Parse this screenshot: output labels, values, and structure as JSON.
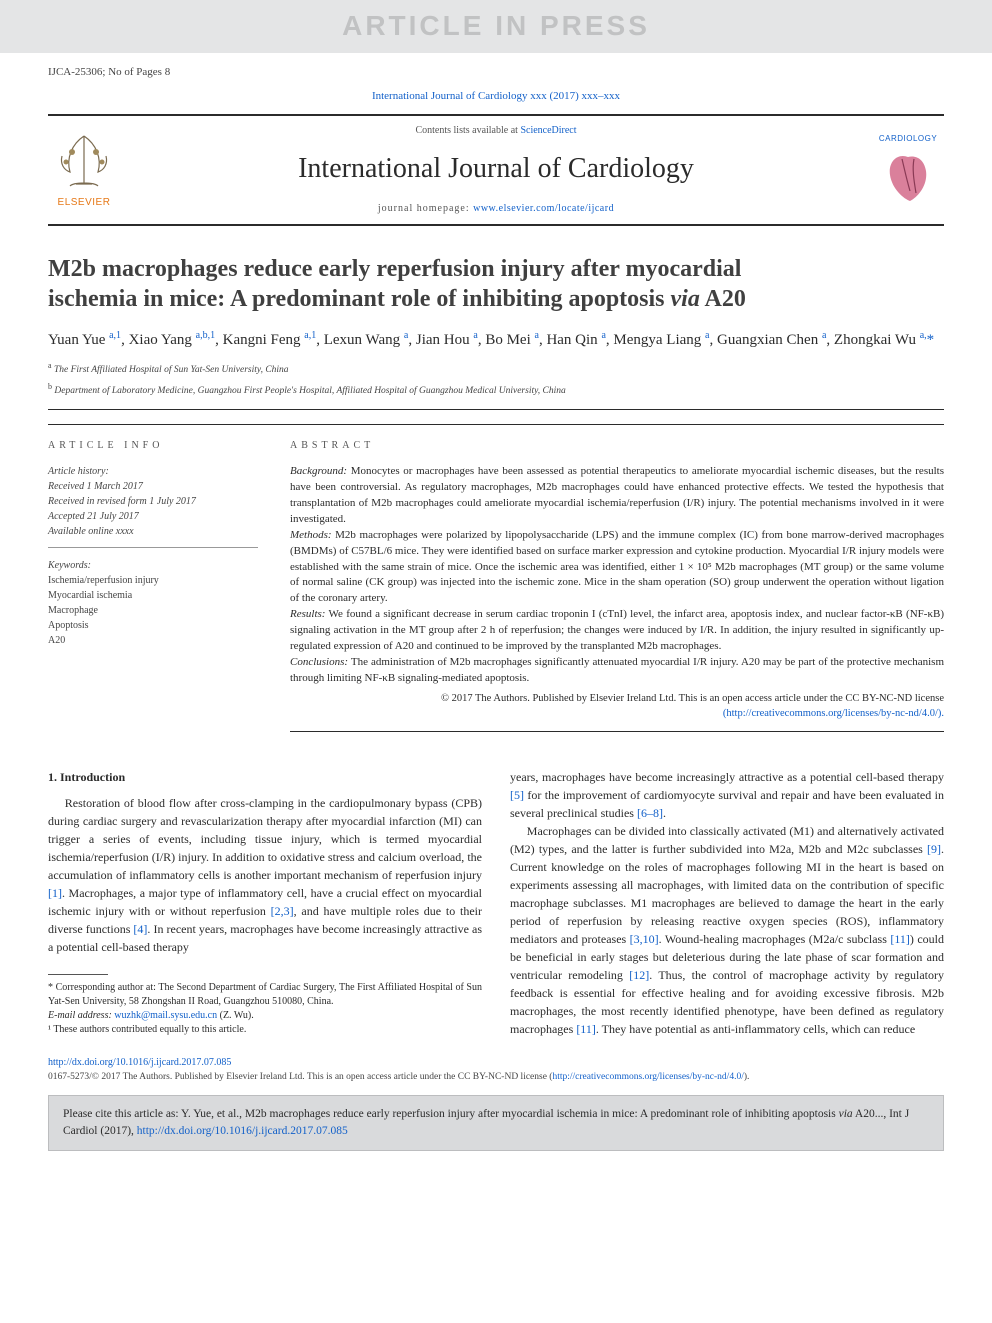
{
  "colors": {
    "link": "#1260c9",
    "text": "#2b2b2b",
    "muted": "#555555",
    "watermark_bg": "#e4e5e6",
    "watermark_fg": "#c1c2c3",
    "citebox_bg": "#d9dadc",
    "elsevier_orange": "#e67817"
  },
  "watermark": "ARTICLE IN PRESS",
  "article_id": "IJCA-25306; No of Pages 8",
  "citation_top": "International Journal of Cardiology xxx (2017) xxx–xxx",
  "header": {
    "contents_avail_prefix": "Contents lists available at ",
    "contents_avail_link": "ScienceDirect",
    "journal_name": "International Journal of Cardiology",
    "homepage_prefix": "journal homepage: ",
    "homepage_link": "www.elsevier.com/locate/ijcard",
    "elsevier_label": "ELSEVIER",
    "journal_label": "CARDIOLOGY"
  },
  "title_line1": "M2b macrophages reduce early reperfusion injury after myocardial",
  "title_line2_pre": "ischemia in mice: A predominant role of inhibiting apoptosis ",
  "title_line2_via": "via",
  "title_line2_post": " A20",
  "authors_html": "Yuan Yue <sup>a,1</sup>, Xiao Yang <sup>a,b,1</sup>, Kangni Feng <sup>a,1</sup>, Lexun Wang <sup>a</sup>, Jian Hou <sup>a</sup>, Bo Mei <sup>a</sup>, Han Qin <sup>a</sup>, Mengya Liang <sup>a</sup>, Guangxian Chen <sup>a</sup>, Zhongkai Wu <sup>a,</sup><span class='star'>*</span>",
  "affils": [
    "a  The First Affiliated Hospital of Sun Yat-Sen University, China",
    "b  Department of Laboratory Medicine, Guangzhou First People's Hospital, Affiliated Hospital of Guangzhou Medical University, China"
  ],
  "info": {
    "article_info_h": "article info",
    "abstract_h": "abstract",
    "history_label": "Article history:",
    "history": [
      "Received 1 March 2017",
      "Received in revised form 1 July 2017",
      "Accepted 21 July 2017",
      "Available online xxxx"
    ],
    "keywords_label": "Keywords:",
    "keywords": [
      "Ischemia/reperfusion injury",
      "Myocardial ischemia",
      "Macrophage",
      "Apoptosis",
      "A20"
    ]
  },
  "abstract": {
    "background_lbl": "Background:",
    "background": " Monocytes or macrophages have been assessed as potential therapeutics to ameliorate myocardial ischemic diseases, but the results have been controversial. As regulatory macrophages, M2b macrophages could have enhanced protective effects. We tested the hypothesis that transplantation of M2b macrophages could ameliorate myocardial ischemia/reperfusion (I/R) injury. The potential mechanisms involved in it were investigated.",
    "methods_lbl": "Methods:",
    "methods": " M2b macrophages were polarized by lipopolysaccharide (LPS) and the immune complex (IC) from bone marrow-derived macrophages (BMDMs) of C57BL/6 mice. They were identified based on surface marker expression and cytokine production. Myocardial I/R injury models were established with the same strain of mice. Once the ischemic area was identified, either 1 × 10⁵ M2b macrophages (MT group) or the same volume of normal saline (CK group) was injected into the ischemic zone. Mice in the sham operation (SO) group underwent the operation without ligation of the coronary artery.",
    "results_lbl": "Results:",
    "results": " We found a significant decrease in serum cardiac troponin I (cTnI) level, the infarct area, apoptosis index, and nuclear factor-κB (NF-κB) signaling activation in the MT group after 2 h of reperfusion; the changes were induced by I/R. In addition, the injury resulted in significantly up-regulated expression of A20 and continued to be improved by the transplanted M2b macrophages.",
    "conclusions_lbl": "Conclusions:",
    "conclusions": " The administration of M2b macrophages significantly attenuated myocardial I/R injury. A20 may be part of the protective mechanism through limiting NF-κB signaling-mediated apoptosis.",
    "copyright": "© 2017 The Authors. Published by Elsevier Ireland Ltd. This is an open access article under the CC BY-NC-ND license",
    "license_link": "(http://creativecommons.org/licenses/by-nc-nd/4.0/)."
  },
  "body": {
    "intro_h": "1. Introduction",
    "p1_a": "Restoration of blood flow after cross-clamping in the cardiopulmonary bypass (CPB) during cardiac surgery and revascularization therapy after myocardial infarction (MI) can trigger a series of events, including tissue injury, which is termed myocardial ischemia/reperfusion (I/R) injury. In addition to oxidative stress and calcium overload, the accumulation of inflammatory cells is another important mechanism of reperfusion injury ",
    "r1": "[1]",
    "p1_b": ". Macrophages, a major type of inflammatory cell, have a crucial effect on myocardial ischemic injury with or without reperfusion ",
    "r23": "[2,3]",
    "p1_c": ", and have multiple roles due to their diverse functions ",
    "r4": "[4]",
    "p1_d": ". In recent years, macrophages have become increasingly attractive as a potential cell-based therapy ",
    "r5": "[5]",
    "p1_e": " for the improvement of cardiomyocyte survival and repair and have been evaluated in several preclinical studies ",
    "r68": "[6–8]",
    "p1_f": ".",
    "p2_a": "Macrophages can be divided into classically activated (M1) and alternatively activated (M2) types, and the latter is further subdivided into M2a, M2b and M2c subclasses ",
    "r9": "[9]",
    "p2_b": ". Current knowledge on the roles of macrophages following MI in the heart is based on experiments assessing all macrophages, with limited data on the contribution of specific macrophage subclasses. M1 macrophages are believed to damage the heart in the early period of reperfusion by releasing reactive oxygen species (ROS), inflammatory mediators and proteases ",
    "r310": "[3,10]",
    "p2_c": ". Wound-healing macrophages (M2a/c subclass ",
    "r11": "[11]",
    "p2_d": ") could be beneficial in early stages but deleterious during the late phase of scar formation and ventricular remodeling ",
    "r12": "[12]",
    "p2_e": ". Thus, the control of macrophage activity by regulatory feedback is essential for effective healing and for avoiding excessive fibrosis. M2b macrophages, the most recently identified phenotype, have been defined as regulatory macrophages ",
    "r11b": "[11]",
    "p2_f": ". They have potential as anti-inflammatory cells, which can reduce"
  },
  "footnotes": {
    "corr": "* Corresponding author at: The Second Department of Cardiac Surgery, The First Affiliated Hospital of Sun Yat-Sen University, 58 Zhongshan II Road, Guangzhou 510080, China.",
    "email_lbl": "E-mail address: ",
    "email": "wuzhk@mail.sysu.edu.cn",
    "email_sfx": " (Z. Wu).",
    "equal": "¹ These authors contributed equally to this article."
  },
  "doi": {
    "link": "http://dx.doi.org/10.1016/j.ijcard.2017.07.085",
    "copyright_a": "0167-5273/© 2017 The Authors. Published by Elsevier Ireland Ltd. This is an open access article under the CC BY-NC-ND license (",
    "license_link": "http://creativecommons.org/licenses/by-nc-nd/4.0/",
    "copyright_b": ")."
  },
  "citebox": {
    "text_a": "Please cite this article as: Y. Yue, et al., M2b macrophages reduce early reperfusion injury after myocardial ischemia in mice: A predominant role of inhibiting apoptosis ",
    "via": "via",
    "text_b": " A20..., Int J Cardiol (2017), ",
    "link": "http://dx.doi.org/10.1016/j.ijcard.2017.07.085"
  }
}
